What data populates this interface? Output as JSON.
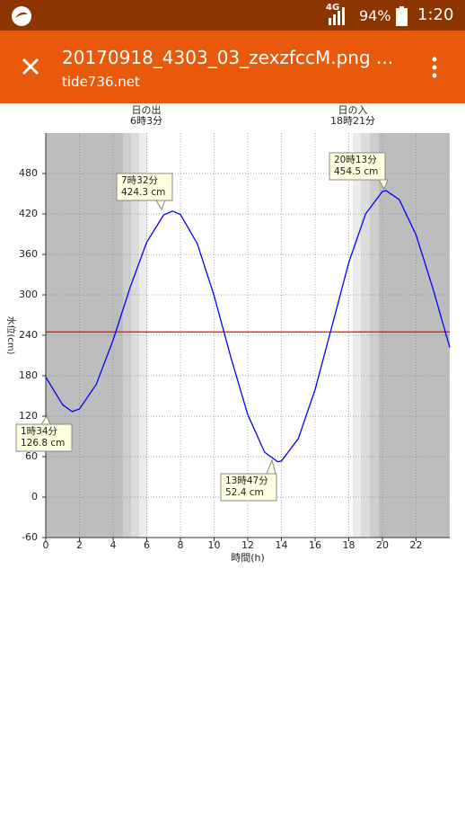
{
  "status_bar": {
    "network": "4G",
    "battery": "94%",
    "time": "1:20"
  },
  "toolbar": {
    "title": "20170918_4303_03_zexzfccM.png ...",
    "subtitle": "tide736.net"
  },
  "chart_data": {
    "type": "line",
    "sunrise": {
      "label": "日の出",
      "time": "6時3分"
    },
    "sunset": {
      "label": "日の入",
      "time": "18時21分"
    },
    "x_label": "時間(h)",
    "y_label": "水位(cm)",
    "x": [
      0,
      1,
      1.567,
      2,
      3,
      4,
      5,
      6,
      7,
      7.533,
      8,
      9,
      10,
      11,
      12,
      13,
      13.783,
      14,
      15,
      16,
      17,
      18,
      19,
      20,
      20.217,
      21,
      22,
      23,
      24
    ],
    "series": [
      {
        "color": "#0000ff",
        "values": [
          178,
          137,
          126.8,
          130.7,
          167.3,
          233,
          310.4,
          378.3,
          418.5,
          424.3,
          419.2,
          375.9,
          298.8,
          206.6,
          122.3,
          66.5,
          52.4,
          53.5,
          86.8,
          159.4,
          253.5,
          347.7,
          420.1,
          453.3,
          454.5,
          441.2,
          388.8,
          309.3,
          222
        ]
      }
    ],
    "reference_line": {
      "value": 245,
      "color": "#ff0000"
    },
    "annotations": [
      {
        "time": "1時34分",
        "level": "126.8 cm"
      },
      {
        "time": "7時32分",
        "level": "424.3 cm"
      },
      {
        "time": "13時47分",
        "level": "52.4 cm"
      },
      {
        "time": "20時13分",
        "level": "454.5 cm"
      }
    ],
    "xlim": [
      0,
      24
    ],
    "xticks": [
      0,
      2,
      4,
      6,
      8,
      10,
      12,
      14,
      16,
      18,
      20,
      22
    ],
    "ylim": [
      -60,
      540
    ],
    "yticks": [
      -60,
      0,
      60,
      120,
      180,
      240,
      300,
      360,
      420,
      480
    ],
    "grid": true
  }
}
